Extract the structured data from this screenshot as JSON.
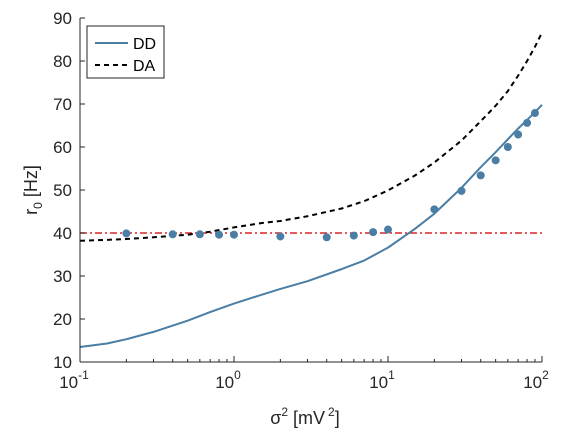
{
  "chart_data": {
    "type": "line",
    "xscale": "log",
    "xlim": [
      0.1,
      100
    ],
    "ylim": [
      10,
      90
    ],
    "grid": false,
    "legend_position": "top-left",
    "xlabel": {
      "base": "σ",
      "sup1": "2",
      "mid": " [mV",
      "sup2": "2",
      "end": "]"
    },
    "ylabel": {
      "base": "r",
      "sub": "0",
      "end": " [Hz]"
    },
    "x_ticks": [
      {
        "base": "10",
        "exp": "-1",
        "value": 0.1
      },
      {
        "base": "10",
        "exp": "0",
        "value": 1
      },
      {
        "base": "10",
        "exp": "1",
        "value": 10
      },
      {
        "base": "10",
        "exp": "2",
        "value": 100
      }
    ],
    "y_ticks": [
      "10",
      "20",
      "30",
      "40",
      "50",
      "60",
      "70",
      "80",
      "90"
    ],
    "colors": {
      "dd": "#4a7ea5",
      "da": "#000000",
      "ref": "#d62728",
      "points": "#4a7ea5"
    },
    "series": [
      {
        "name": "DD",
        "style": "solid",
        "x": [
          0.1,
          0.15,
          0.2,
          0.3,
          0.5,
          0.7,
          1,
          1.5,
          2,
          3,
          5,
          7,
          10,
          15,
          20,
          30,
          40,
          50,
          60,
          70,
          80,
          90,
          100
        ],
        "y": [
          13.5,
          14.3,
          15.3,
          17.0,
          19.6,
          21.6,
          23.6,
          25.6,
          27.0,
          28.8,
          31.6,
          33.6,
          36.6,
          41.0,
          44.5,
          50.5,
          55.3,
          58.8,
          61.8,
          64.3,
          66.3,
          68.1,
          69.8
        ]
      },
      {
        "name": "DA",
        "style": "dashed",
        "x": [
          0.1,
          0.15,
          0.2,
          0.3,
          0.5,
          0.7,
          1,
          1.5,
          2,
          3,
          5,
          7,
          10,
          15,
          20,
          30,
          40,
          50,
          60,
          70,
          80,
          90,
          100
        ],
        "y": [
          38.2,
          38.4,
          38.6,
          39.0,
          39.6,
          40.3,
          41.3,
          42.3,
          42.8,
          43.9,
          45.7,
          47.4,
          49.9,
          53.4,
          56.4,
          61.5,
          66.0,
          69.6,
          73.0,
          76.6,
          80.0,
          83.3,
          86.6
        ]
      },
      {
        "style": "dash-dot",
        "x": [
          0.1,
          100
        ],
        "y": [
          40,
          40
        ]
      },
      {
        "style": "markers",
        "x": [
          0.2,
          0.4,
          0.6,
          0.8,
          1,
          2,
          4,
          6,
          8,
          10,
          20,
          30,
          40,
          50,
          60,
          70,
          80,
          90
        ],
        "y": [
          39.9,
          39.7,
          39.7,
          39.6,
          39.6,
          39.2,
          39.0,
          39.4,
          40.2,
          40.8,
          45.5,
          49.8,
          53.4,
          56.9,
          60.0,
          62.9,
          65.6,
          67.9
        ]
      }
    ],
    "legend": [
      {
        "label": "DD",
        "style": "solid"
      },
      {
        "label": "DA",
        "style": "dashed"
      }
    ]
  }
}
